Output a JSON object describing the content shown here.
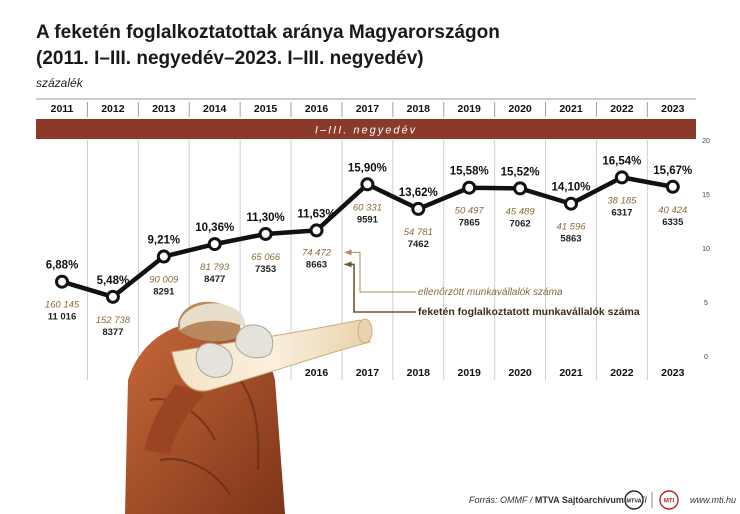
{
  "title_line1": "A feketén foglalkoztatottak aránya Magyarországon",
  "title_line2": "(2011. I–III. negyedév–2023. I–III. negyedév)",
  "unit_label": "százalék",
  "band_label": "I–III. negyedév",
  "legend": {
    "inspected": "ellenőrzött munkavállalók száma",
    "undeclared": "feketén foglalkoztatott munkavállalók száma"
  },
  "footer": {
    "source_prefix": "Forrás: OMMF / ",
    "source_bold": "MTVA Sajtóarchívum",
    "source_suffix": " / MTI",
    "logo1": "MTVA",
    "logo2": "MTI",
    "website": "www.mti.hu"
  },
  "colors": {
    "band": "#8b3a2a",
    "line": "#111111",
    "inspected_text": "#8a6a3a",
    "legend_line": "#6b5630",
    "grid": "#cfcfcf"
  },
  "chart_data": {
    "type": "line",
    "x": [
      "2011",
      "2012",
      "2013",
      "2014",
      "2015",
      "2016",
      "2017",
      "2018",
      "2019",
      "2020",
      "2021",
      "2022",
      "2023"
    ],
    "series": [
      {
        "values": [
          6.88,
          5.48,
          9.21,
          10.36,
          11.3,
          11.63,
          15.9,
          13.62,
          15.58,
          15.52,
          14.1,
          16.54,
          15.67
        ],
        "labels": [
          "6,88%",
          "5,48%",
          "9,21%",
          "10,36%",
          "11,30%",
          "11,63%",
          "15,90%",
          "13,62%",
          "15,58%",
          "15,52%",
          "14,10%",
          "16,54%",
          "15,67%"
        ]
      }
    ],
    "inspected": [
      "160 145",
      "152 738",
      "90 009",
      "81 793",
      "65 066",
      "74 472",
      "60 331",
      "54 781",
      "50 497",
      "45 489",
      "41 596",
      "38 185",
      "40 424"
    ],
    "undeclared": [
      "11 016",
      "8377",
      "8291",
      "8477",
      "7353",
      "8663",
      "9591",
      "7462",
      "7865",
      "7062",
      "5863",
      "6317",
      "6335"
    ],
    "ylim": [
      0,
      20
    ],
    "yticks": [
      "0",
      "5",
      "10",
      "15",
      "20"
    ],
    "ytick_values": [
      0,
      5,
      10,
      15,
      20
    ],
    "bottom_x_labels": [
      "2016",
      "2017",
      "2018",
      "2019",
      "2020",
      "2021",
      "2022",
      "2023"
    ],
    "grid": "vertical",
    "legend_position": "middle"
  }
}
